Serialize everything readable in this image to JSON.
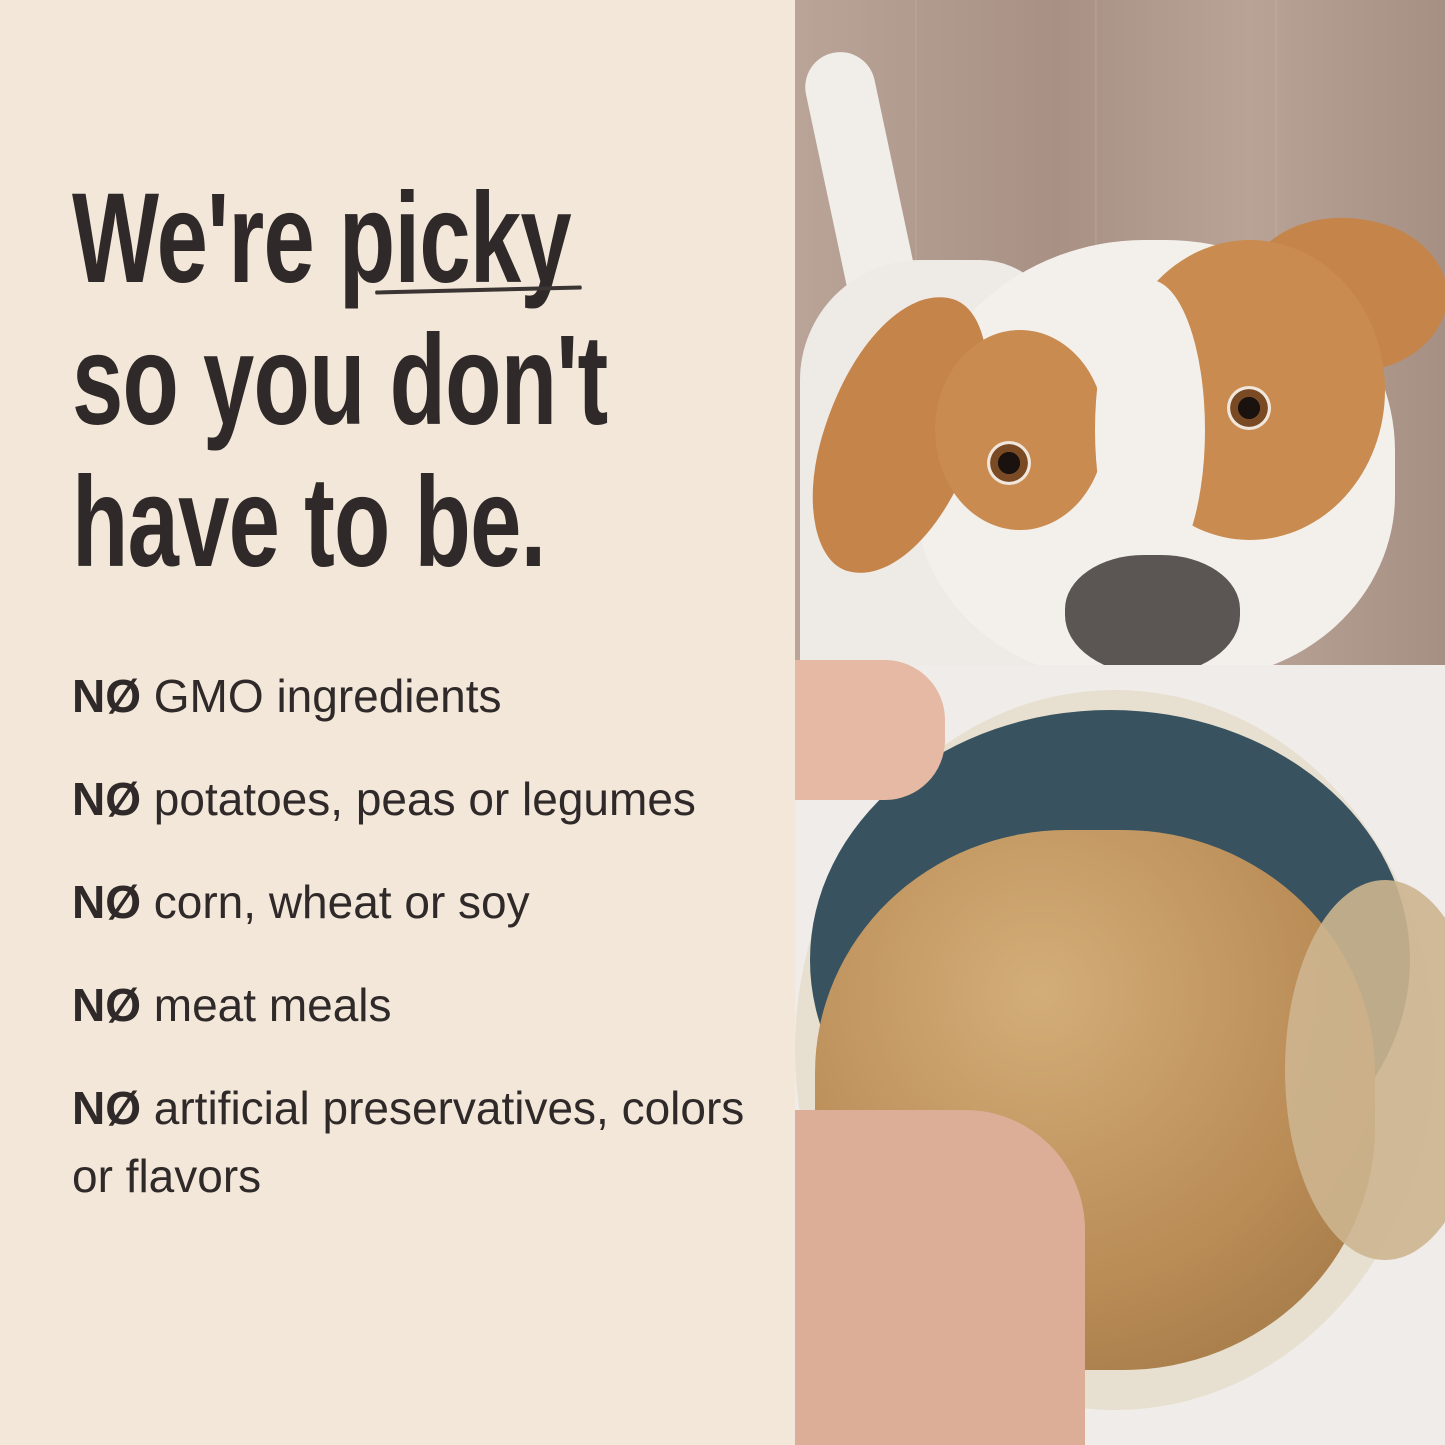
{
  "headline": {
    "line1_prefix": "We're ",
    "line1_emphasis": "picky",
    "line2": "so you don't",
    "line3": "have to be."
  },
  "claims": [
    {
      "prefix": "NØ",
      "text": " GMO ingredients"
    },
    {
      "prefix": "NØ",
      "text": " potatoes, peas or legumes"
    },
    {
      "prefix": "NØ",
      "text": " corn, wheat or soy"
    },
    {
      "prefix": "NØ",
      "text": " meat meals"
    },
    {
      "prefix": "NØ",
      "text": " artificial preservatives, colors or flavors"
    }
  ],
  "colors": {
    "background": "#f2e7d8",
    "text": "#2f2a29"
  },
  "photo": {
    "subject": "dog looking at bowl of kibble"
  }
}
